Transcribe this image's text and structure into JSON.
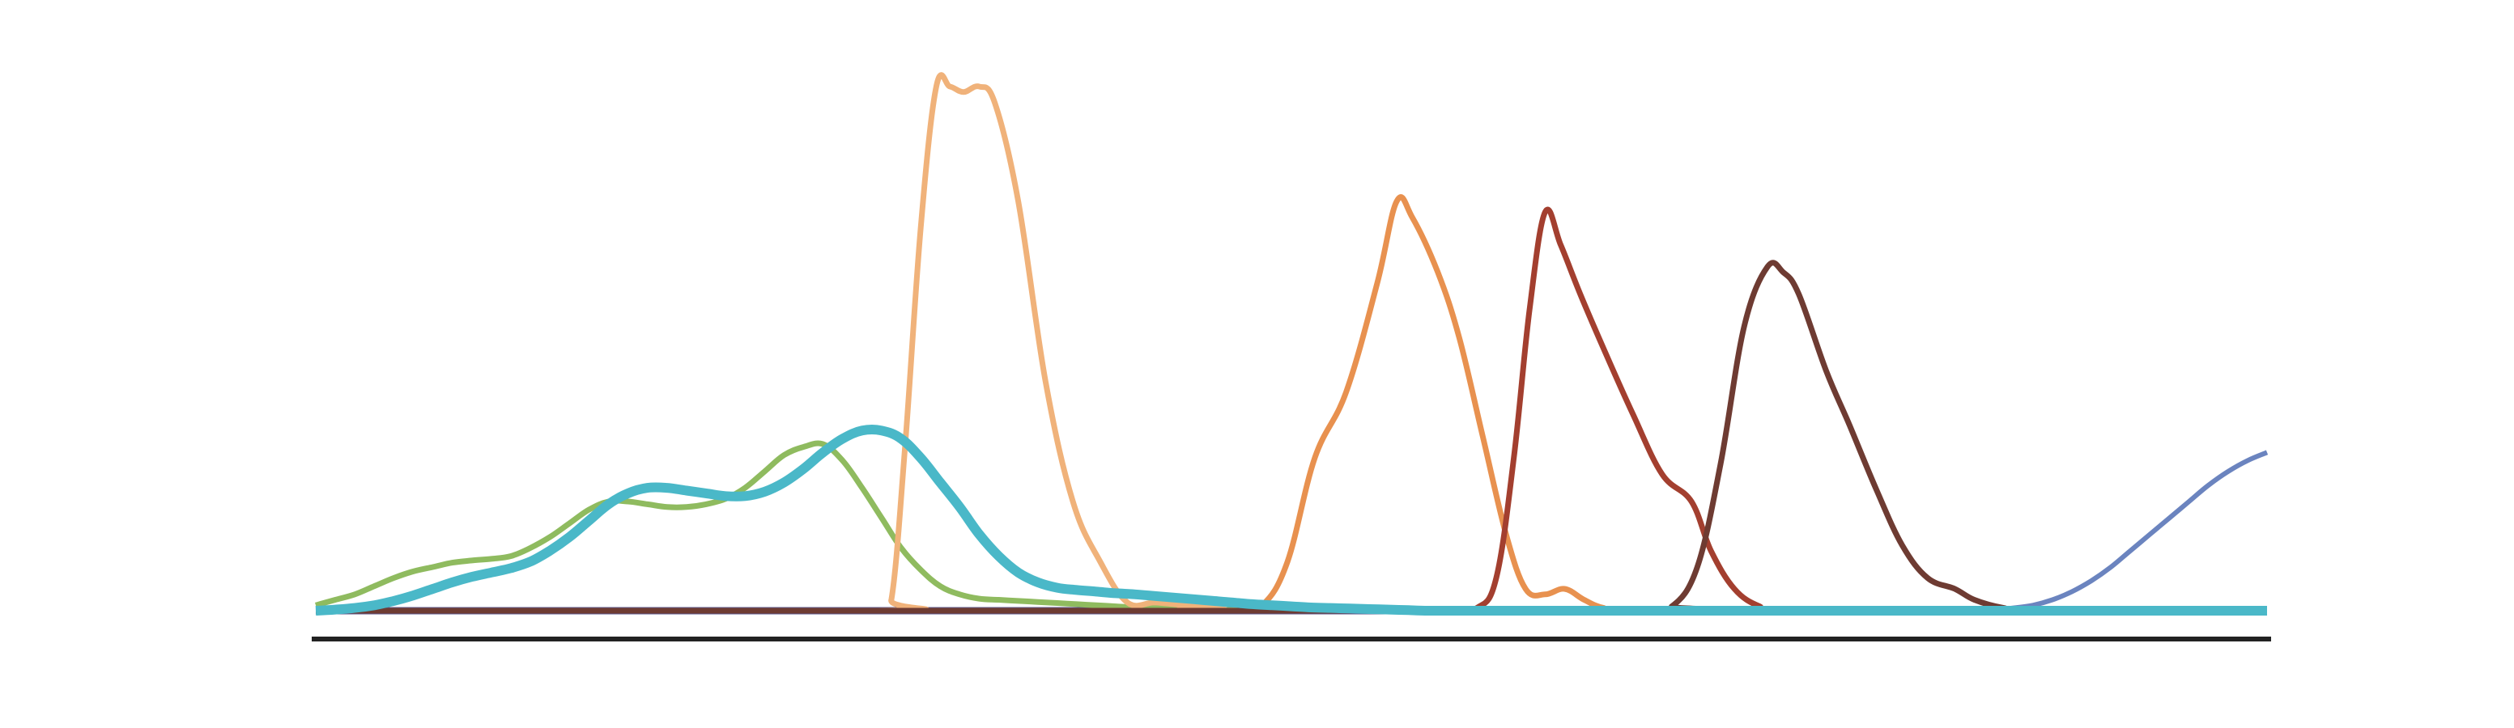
{
  "chart_data": {
    "type": "line",
    "title": "",
    "xlabel": "",
    "ylabel": "",
    "xlim": [
      0,
      100
    ],
    "ylim": [
      0,
      100
    ],
    "grid": false,
    "legend": "none",
    "axis_color": "#222222",
    "x": [
      0,
      1,
      2,
      3,
      4,
      5,
      6,
      7,
      8,
      9,
      10,
      11,
      12,
      13,
      14,
      15,
      16,
      17,
      18,
      19,
      20,
      21,
      22,
      23,
      24,
      25,
      26,
      27,
      28,
      29,
      30,
      31,
      32,
      33,
      34,
      35,
      36,
      37,
      38,
      39,
      40,
      41,
      42,
      43,
      44,
      45,
      46,
      47,
      48,
      49,
      50,
      51,
      52,
      53,
      54,
      55,
      56,
      57,
      58,
      59,
      60,
      61,
      62,
      63,
      64,
      65,
      66,
      67,
      68,
      69,
      70,
      71,
      72,
      73,
      74,
      75,
      76,
      77,
      78,
      79,
      80,
      81,
      82,
      83,
      84,
      85,
      86,
      87,
      88,
      89,
      90,
      91,
      92,
      93,
      94,
      95,
      96,
      97,
      98,
      99,
      100
    ],
    "series": [
      {
        "color": "#5f5b8f",
        "width": 9,
        "values": [
          0,
          0,
          0,
          0,
          0,
          0,
          0,
          0,
          0,
          0,
          0,
          0,
          0,
          0,
          0,
          0,
          0,
          0,
          0,
          0,
          0,
          0,
          0,
          0,
          0,
          0,
          0,
          0,
          0,
          0,
          0,
          0,
          0,
          0,
          0,
          0,
          0,
          0,
          0,
          0,
          0,
          0,
          0,
          0,
          0,
          0,
          0,
          0,
          0,
          0,
          0,
          0,
          0,
          0,
          0,
          0,
          0,
          0,
          0,
          0,
          0,
          0,
          0,
          0,
          0,
          0,
          0,
          0,
          0,
          0,
          0,
          0,
          0,
          0,
          0,
          0,
          0,
          0,
          0,
          0,
          0,
          0,
          0,
          0,
          0,
          0,
          0,
          0,
          0,
          0,
          0,
          0,
          0,
          0,
          0,
          0,
          0,
          0,
          0,
          0,
          0
        ]
      },
      {
        "color": "#6b84bf",
        "width": 6,
        "values": [
          0,
          0,
          0,
          0,
          0,
          0,
          0,
          0,
          0,
          0,
          0,
          0,
          0,
          0,
          0,
          0,
          0,
          0,
          0,
          0,
          0,
          0,
          0,
          0,
          0,
          0,
          0,
          0,
          0,
          0,
          0,
          0,
          0,
          0,
          0,
          0,
          0,
          0,
          0,
          0,
          0,
          0,
          0,
          0,
          0,
          0,
          0,
          0,
          0,
          0,
          0,
          0,
          0,
          0,
          0,
          0,
          0,
          0,
          0,
          0,
          0,
          0,
          0,
          0,
          0,
          0,
          0,
          0,
          0,
          0,
          0,
          0,
          0,
          0,
          0,
          0,
          0,
          0,
          0,
          0,
          0,
          0,
          0,
          0,
          0,
          0,
          0.2,
          0.5,
          1,
          2,
          3.5,
          5.5,
          8,
          11,
          14,
          17,
          20,
          23,
          25.5,
          27.5,
          29
        ]
      },
      {
        "color": "#8fbb5f",
        "width": 7,
        "values": [
          1,
          2,
          3,
          4.5,
          6,
          7.2,
          8,
          8.8,
          9.2,
          9.5,
          10,
          11.5,
          13.5,
          16,
          18.5,
          20,
          20,
          19.5,
          19,
          19,
          19.5,
          20.5,
          22.5,
          25.5,
          28.5,
          30,
          30.5,
          27.5,
          22.5,
          17,
          11.5,
          7.5,
          4.5,
          3,
          2.2,
          2,
          1.8,
          1.6,
          1.4,
          1.2,
          1,
          0.8,
          0.6,
          0.5,
          0.4,
          0.3,
          0.2,
          0.1,
          0,
          0,
          0,
          0,
          0,
          0,
          0,
          0,
          0,
          0,
          0,
          0,
          0,
          0,
          0,
          0,
          0,
          0,
          0,
          0,
          0,
          0,
          0,
          0,
          0,
          0,
          0,
          0,
          0,
          0,
          0,
          0,
          0,
          0,
          0,
          0,
          0,
          0,
          0,
          0,
          0,
          0,
          0,
          0,
          0,
          0,
          0,
          0,
          0,
          0,
          0,
          0,
          0
        ]
      },
      {
        "color": "#f0b27a",
        "width": 7,
        "values": [
          0,
          0,
          0,
          0,
          0,
          0,
          0,
          0,
          0,
          0,
          0,
          0,
          0,
          0,
          0,
          0,
          0,
          0,
          0,
          0,
          0,
          0,
          0,
          0,
          0,
          0,
          0,
          0,
          0,
          0,
          0,
          0,
          0,
          0,
          0,
          0,
          0,
          0,
          0,
          0,
          0,
          0,
          0,
          0,
          0,
          0,
          0,
          0,
          0,
          0,
          0,
          0,
          0,
          0,
          0,
          0,
          0,
          0,
          0,
          0,
          0,
          0,
          0,
          0,
          0,
          0,
          0,
          0,
          0,
          0,
          0,
          0,
          0,
          0,
          0,
          0,
          0,
          0,
          0,
          0,
          0,
          0,
          0,
          0,
          0,
          0,
          0,
          0,
          0,
          0,
          0,
          0,
          0,
          0,
          0,
          0,
          0,
          0,
          0,
          0,
          0
        ]
      },
      {
        "color": "#e8914f",
        "width": 7,
        "values": [
          0,
          0,
          0,
          0,
          0,
          0,
          0,
          0,
          0,
          0,
          0,
          0,
          0,
          0,
          0,
          0,
          0,
          0,
          0,
          0,
          0,
          0,
          0,
          0,
          0,
          0,
          0,
          0,
          0,
          0,
          0,
          0,
          0,
          0,
          0,
          0,
          0,
          0,
          0,
          0,
          0,
          0,
          0,
          0,
          0,
          0,
          0,
          0,
          0,
          0,
          0,
          0,
          0,
          0,
          0,
          0,
          0,
          0,
          0,
          0,
          0,
          0,
          0,
          0,
          0,
          0,
          0,
          0,
          0,
          0,
          0,
          0,
          0,
          0,
          0,
          0,
          0,
          0,
          0,
          0,
          0,
          0,
          0,
          0,
          0,
          0,
          0,
          0,
          0,
          0,
          0,
          0,
          0,
          0,
          0,
          0,
          0,
          0,
          0,
          0,
          0
        ]
      },
      {
        "color": "#a33f2f",
        "width": 7,
        "values": [
          0,
          0,
          0,
          0,
          0,
          0,
          0,
          0,
          0,
          0,
          0,
          0,
          0,
          0,
          0,
          0,
          0,
          0,
          0,
          0,
          0,
          0,
          0,
          0,
          0,
          0,
          0,
          0,
          0,
          0,
          0,
          0,
          0,
          0,
          0,
          0,
          0,
          0,
          0,
          0,
          0,
          0,
          0,
          0,
          0,
          0,
          0,
          0,
          0,
          0,
          0,
          0,
          0,
          0,
          0,
          0,
          0,
          0,
          0,
          0,
          0,
          0,
          0,
          0,
          0,
          0,
          0,
          0,
          0,
          0,
          0,
          0,
          0,
          0,
          0,
          0,
          0,
          0,
          0,
          0,
          0,
          0,
          0,
          0,
          0,
          0,
          0,
          0,
          0,
          0,
          0,
          0,
          0,
          0,
          0,
          0,
          0,
          0,
          0,
          0,
          0
        ]
      },
      {
        "color": "#6e3b32",
        "width": 7,
        "values": [
          0,
          0,
          0,
          0,
          0,
          0,
          0,
          0,
          0,
          0,
          0,
          0,
          0,
          0,
          0,
          0,
          0,
          0,
          0,
          0,
          0,
          0,
          0,
          0,
          0,
          0,
          0,
          0,
          0,
          0,
          0,
          0,
          0,
          0,
          0,
          0,
          0,
          0,
          0,
          0,
          0,
          0,
          0,
          0,
          0,
          0,
          0,
          0,
          0,
          0,
          0,
          0,
          0,
          0,
          0,
          0,
          0,
          0,
          0,
          0,
          0,
          0,
          0,
          0,
          0,
          0,
          0,
          0,
          0,
          0,
          0,
          0,
          0,
          0,
          0,
          0,
          0,
          0,
          0,
          0,
          0,
          0,
          0,
          0,
          0,
          0,
          0,
          0,
          0,
          0,
          0,
          0,
          0,
          0,
          0,
          0,
          0,
          0,
          0,
          0,
          0
        ]
      },
      {
        "color": "#4ab8c8",
        "width": 12,
        "values": [
          0,
          0.2,
          0.5,
          1,
          1.8,
          2.8,
          4,
          5.2,
          6.2,
          7,
          7.8,
          9,
          11,
          13.5,
          16.5,
          19.5,
          21.5,
          22.5,
          22.5,
          22,
          21.5,
          21,
          21,
          21.8,
          23.5,
          26,
          29,
          31.5,
          33,
          33,
          31.5,
          28,
          23.5,
          19,
          14,
          10,
          7,
          5.2,
          4.2,
          3.8,
          3.5,
          3.2,
          3,
          2.7,
          2.4,
          2.1,
          1.8,
          1.5,
          1.2,
          1,
          0.8,
          0.6,
          0.5,
          0.4,
          0.3,
          0.2,
          0.1,
          0,
          0,
          0,
          0,
          0,
          0,
          0,
          0,
          0,
          0,
          0,
          0,
          0,
          0,
          0,
          0,
          0,
          0,
          0,
          0,
          0,
          0,
          0,
          0,
          0,
          0,
          0,
          0,
          0,
          0,
          0,
          0,
          0,
          0,
          0,
          0,
          0,
          0,
          0,
          0,
          0,
          0,
          0,
          0
        ]
      }
    ]
  }
}
